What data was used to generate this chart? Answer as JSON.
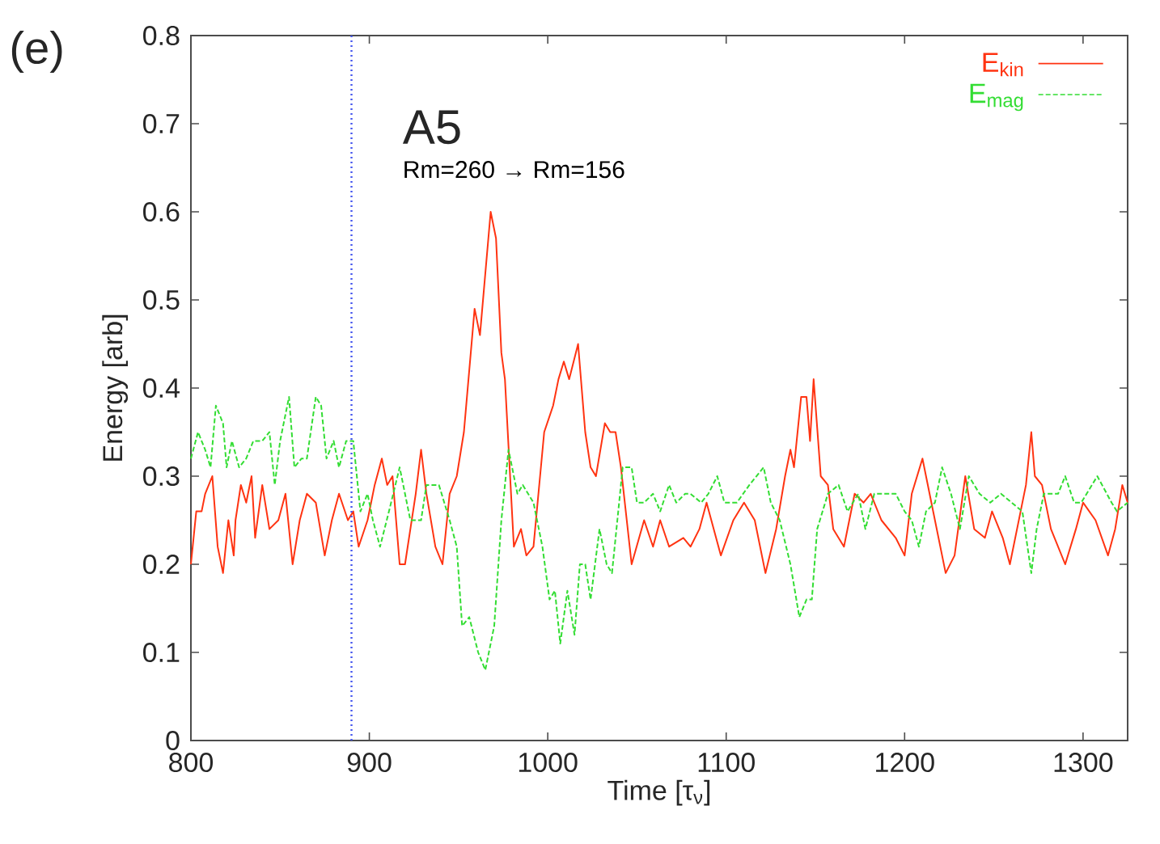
{
  "chart_data": {
    "type": "line",
    "title": "A5",
    "subtitle": "Rm=260 → Rm=156",
    "annotations": [
      "(e)"
    ],
    "xlabel": "Time [τ$_{ν}$]",
    "ylabel": "Energy [arb]",
    "xlim": [
      800,
      1325
    ],
    "ylim": [
      0,
      0.8
    ],
    "xticks": [
      800,
      900,
      1000,
      1100,
      1200,
      1300
    ],
    "yticks": [
      {
        "value": 0,
        "label": "0"
      },
      0.1,
      0.2,
      0.3,
      0.4,
      0.5,
      0.6,
      0.7,
      0.8
    ],
    "grid": false,
    "legend": "top right",
    "ref_lines": [
      {
        "axis": "x",
        "value": 890,
        "color": "#4455ee",
        "line_style": "dotted"
      }
    ],
    "series": [
      {
        "name": "E$_{kin}$",
        "color": "#ff3311",
        "line_style": "solid",
        "x": [
          800,
          803,
          806,
          808,
          812,
          815,
          818,
          821,
          824,
          825,
          828,
          831,
          834,
          836,
          840,
          844,
          849,
          853,
          857,
          861,
          865,
          870,
          875,
          879,
          883,
          888,
          891,
          894,
          899,
          903,
          907,
          910,
          913,
          917,
          920,
          926,
          929,
          932,
          937,
          941,
          945,
          949,
          953,
          959,
          962,
          968,
          971,
          974,
          976,
          981,
          985,
          988,
          992,
          998,
          1003,
          1006,
          1009,
          1012,
          1017,
          1021,
          1024,
          1027,
          1032,
          1035,
          1038,
          1041,
          1047,
          1054,
          1059,
          1063,
          1068,
          1076,
          1080,
          1085,
          1089,
          1097,
          1104,
          1110,
          1116,
          1122,
          1128,
          1133,
          1136,
          1138,
          1142,
          1145,
          1147,
          1149,
          1153,
          1157,
          1160,
          1166,
          1172,
          1177,
          1181,
          1187,
          1195,
          1200,
          1204,
          1210,
          1215,
          1223,
          1228,
          1234,
          1239,
          1245,
          1249,
          1255,
          1259,
          1265,
          1268,
          1271,
          1273,
          1277,
          1282,
          1290,
          1296,
          1300,
          1307,
          1314,
          1318,
          1322,
          1325
        ],
        "values": [
          0.2,
          0.26,
          0.26,
          0.28,
          0.3,
          0.22,
          0.19,
          0.25,
          0.21,
          0.25,
          0.29,
          0.27,
          0.3,
          0.23,
          0.29,
          0.24,
          0.25,
          0.28,
          0.2,
          0.25,
          0.28,
          0.27,
          0.21,
          0.25,
          0.28,
          0.25,
          0.26,
          0.22,
          0.25,
          0.29,
          0.32,
          0.29,
          0.3,
          0.2,
          0.2,
          0.28,
          0.33,
          0.28,
          0.22,
          0.2,
          0.28,
          0.3,
          0.35,
          0.49,
          0.46,
          0.6,
          0.57,
          0.44,
          0.41,
          0.22,
          0.24,
          0.21,
          0.22,
          0.35,
          0.38,
          0.41,
          0.43,
          0.41,
          0.45,
          0.35,
          0.31,
          0.3,
          0.36,
          0.35,
          0.35,
          0.31,
          0.2,
          0.25,
          0.22,
          0.25,
          0.22,
          0.23,
          0.22,
          0.24,
          0.27,
          0.21,
          0.25,
          0.27,
          0.25,
          0.19,
          0.24,
          0.3,
          0.33,
          0.31,
          0.39,
          0.39,
          0.34,
          0.41,
          0.3,
          0.29,
          0.24,
          0.22,
          0.28,
          0.27,
          0.28,
          0.25,
          0.23,
          0.21,
          0.28,
          0.32,
          0.27,
          0.19,
          0.21,
          0.3,
          0.24,
          0.23,
          0.26,
          0.23,
          0.2,
          0.26,
          0.29,
          0.35,
          0.3,
          0.29,
          0.24,
          0.2,
          0.24,
          0.27,
          0.25,
          0.21,
          0.24,
          0.29,
          0.27
        ]
      },
      {
        "name": "E$_{mag}$",
        "color": "#33dd33",
        "line_style": "dashed",
        "x": [
          800,
          804,
          808,
          811,
          814,
          818,
          820,
          823,
          827,
          831,
          835,
          840,
          844,
          847,
          850,
          855,
          858,
          862,
          865,
          870,
          873,
          876,
          880,
          883,
          887,
          891,
          895,
          899,
          902,
          906,
          911,
          917,
          923,
          929,
          932,
          939,
          945,
          949,
          952,
          956,
          961,
          965,
          968,
          970,
          974,
          978,
          983,
          986,
          992,
          997,
          1001,
          1004,
          1007,
          1011,
          1015,
          1018,
          1021,
          1024,
          1029,
          1033,
          1036,
          1042,
          1047,
          1050,
          1054,
          1059,
          1063,
          1068,
          1072,
          1077,
          1080,
          1086,
          1090,
          1095,
          1099,
          1106,
          1113,
          1121,
          1125,
          1130,
          1136,
          1141,
          1145,
          1148,
          1151,
          1157,
          1163,
          1168,
          1174,
          1178,
          1183,
          1189,
          1195,
          1200,
          1204,
          1208,
          1212,
          1217,
          1221,
          1226,
          1231,
          1236,
          1242,
          1248,
          1254,
          1260,
          1266,
          1271,
          1274,
          1278,
          1286,
          1290,
          1295,
          1299,
          1308,
          1316,
          1319,
          1325
        ],
        "values": [
          0.32,
          0.35,
          0.33,
          0.31,
          0.38,
          0.36,
          0.31,
          0.34,
          0.31,
          0.32,
          0.34,
          0.34,
          0.35,
          0.29,
          0.34,
          0.39,
          0.31,
          0.32,
          0.32,
          0.39,
          0.38,
          0.32,
          0.34,
          0.31,
          0.34,
          0.34,
          0.26,
          0.28,
          0.25,
          0.22,
          0.26,
          0.31,
          0.25,
          0.25,
          0.29,
          0.29,
          0.25,
          0.22,
          0.13,
          0.14,
          0.1,
          0.08,
          0.11,
          0.13,
          0.25,
          0.33,
          0.28,
          0.29,
          0.27,
          0.22,
          0.16,
          0.17,
          0.11,
          0.17,
          0.12,
          0.2,
          0.2,
          0.16,
          0.24,
          0.2,
          0.19,
          0.31,
          0.31,
          0.27,
          0.27,
          0.28,
          0.26,
          0.29,
          0.27,
          0.28,
          0.28,
          0.27,
          0.28,
          0.3,
          0.27,
          0.27,
          0.29,
          0.31,
          0.27,
          0.25,
          0.2,
          0.14,
          0.16,
          0.16,
          0.24,
          0.28,
          0.29,
          0.26,
          0.28,
          0.24,
          0.28,
          0.28,
          0.28,
          0.26,
          0.25,
          0.22,
          0.26,
          0.27,
          0.31,
          0.28,
          0.24,
          0.3,
          0.28,
          0.27,
          0.28,
          0.27,
          0.26,
          0.19,
          0.24,
          0.28,
          0.28,
          0.3,
          0.27,
          0.27,
          0.3,
          0.27,
          0.26,
          0.27
        ]
      }
    ]
  }
}
